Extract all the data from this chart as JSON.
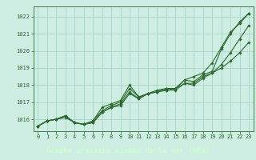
{
  "x": [
    0,
    1,
    2,
    3,
    4,
    5,
    6,
    7,
    8,
    9,
    10,
    11,
    12,
    13,
    14,
    15,
    16,
    17,
    18,
    19,
    20,
    21,
    22,
    23
  ],
  "line1": [
    1015.6,
    1015.9,
    1016.0,
    1016.2,
    1015.8,
    1015.7,
    1015.9,
    1016.7,
    1016.9,
    1017.1,
    1018.0,
    1017.3,
    1017.5,
    1017.6,
    1017.8,
    1017.8,
    1018.3,
    1018.5,
    1018.7,
    1019.3,
    1020.2,
    1021.1,
    1021.6,
    1022.2
  ],
  "line2": [
    1015.6,
    1015.9,
    1016.0,
    1016.2,
    1015.8,
    1015.7,
    1015.9,
    1016.5,
    1016.8,
    1017.0,
    1017.8,
    1017.3,
    1017.5,
    1017.7,
    1017.8,
    1017.8,
    1018.3,
    1018.2,
    1018.6,
    1018.8,
    1020.1,
    1021.0,
    1021.7,
    1022.2
  ],
  "line3": [
    1015.6,
    1015.9,
    1016.0,
    1016.1,
    1015.8,
    1015.7,
    1015.8,
    1016.4,
    1016.7,
    1016.9,
    1017.6,
    1017.2,
    1017.5,
    1017.6,
    1017.7,
    1017.8,
    1018.1,
    1018.1,
    1018.5,
    1018.7,
    1019.2,
    1019.9,
    1020.7,
    1021.5
  ],
  "line4": [
    1015.6,
    1015.9,
    1016.0,
    1016.2,
    1015.8,
    1015.7,
    1015.8,
    1016.4,
    1016.7,
    1016.8,
    1017.5,
    1017.2,
    1017.5,
    1017.6,
    1017.7,
    1017.7,
    1018.1,
    1018.0,
    1018.4,
    1018.7,
    1019.0,
    1019.4,
    1019.9,
    1020.5
  ],
  "bg_color": "#ceeee4",
  "grid_color": "#9ecfc4",
  "line_color": "#2d6b2d",
  "marker": "D",
  "markersize": 1.8,
  "linewidth": 0.8,
  "title": "Graphe pression niveau de la mer (hPa)",
  "ylabel_ticks": [
    1016,
    1017,
    1018,
    1019,
    1020,
    1021,
    1022
  ],
  "ylim": [
    1015.3,
    1022.6
  ],
  "xlim": [
    -0.5,
    23.5
  ],
  "title_color": "#1a4a1a",
  "title_fontsize": 6.5,
  "tick_fontsize": 5.0,
  "ytick_fontsize": 5.0,
  "bottom_bar_color": "#2d6b2d",
  "bottom_bar_text_color": "#ccffcc"
}
